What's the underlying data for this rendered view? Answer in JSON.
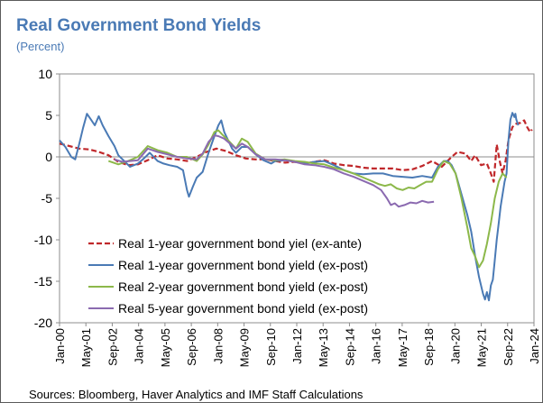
{
  "chart_data": {
    "type": "line",
    "title": "Real Government Bond Yields",
    "subtitle": "(Percent)",
    "source": "Sources: Bloomberg, Haver Analytics and IMF Staff Calculations",
    "ylim": [
      -20,
      10
    ],
    "y_ticks": [
      "10",
      "5",
      "0",
      "-5",
      "-10",
      "-15",
      "-20"
    ],
    "x_tick_labels": [
      "Jan-00",
      "May-01",
      "Sep-02",
      "Jan-04",
      "May-05",
      "Sep-06",
      "Jan-08",
      "May-09",
      "Sep-10",
      "Jan-12",
      "May-13",
      "Sep-14",
      "Jan-16",
      "May-17",
      "Sep-18",
      "Jan-20",
      "May-21",
      "Sep-22",
      "Jan-24"
    ],
    "x_range": [
      2000.0,
      2024.2
    ],
    "legend_position": "lower-left",
    "series": [
      {
        "name": "Real 1-year government bond yiel (ex-ante)",
        "color": "#c0282b",
        "dash": "dashed",
        "points": [
          [
            2000.0,
            1.6
          ],
          [
            2000.5,
            1.3
          ],
          [
            2001.0,
            1.0
          ],
          [
            2001.5,
            0.9
          ],
          [
            2002.0,
            0.6
          ],
          [
            2002.5,
            0.2
          ],
          [
            2003.0,
            -0.6
          ],
          [
            2003.5,
            -1.0
          ],
          [
            2004.0,
            -0.9
          ],
          [
            2004.5,
            -0.4
          ],
          [
            2005.0,
            0.2
          ],
          [
            2005.5,
            -0.2
          ],
          [
            2006.0,
            -0.3
          ],
          [
            2006.5,
            -0.5
          ],
          [
            2007.0,
            0.0
          ],
          [
            2007.5,
            0.6
          ],
          [
            2008.0,
            1.0
          ],
          [
            2008.5,
            0.7
          ],
          [
            2009.0,
            0.2
          ],
          [
            2009.5,
            -0.2
          ],
          [
            2010.0,
            -0.3
          ],
          [
            2010.5,
            -0.3
          ],
          [
            2011.0,
            -0.5
          ],
          [
            2011.5,
            -0.7
          ],
          [
            2012.0,
            -0.6
          ],
          [
            2012.5,
            -0.8
          ],
          [
            2013.0,
            -0.6
          ],
          [
            2013.5,
            -0.4
          ],
          [
            2014.0,
            -0.8
          ],
          [
            2014.5,
            -1.0
          ],
          [
            2015.0,
            -1.1
          ],
          [
            2015.5,
            -1.3
          ],
          [
            2016.0,
            -1.4
          ],
          [
            2016.5,
            -1.4
          ],
          [
            2017.0,
            -1.4
          ],
          [
            2017.5,
            -1.6
          ],
          [
            2018.0,
            -1.5
          ],
          [
            2018.5,
            -1.1
          ],
          [
            2019.0,
            -0.5
          ],
          [
            2019.5,
            -1.2
          ],
          [
            2020.0,
            0.0
          ],
          [
            2020.3,
            0.6
          ],
          [
            2020.7,
            0.4
          ],
          [
            2021.0,
            -0.5
          ],
          [
            2021.2,
            0.2
          ],
          [
            2021.5,
            -1.0
          ],
          [
            2021.8,
            -0.8
          ],
          [
            2022.0,
            -2.0
          ],
          [
            2022.15,
            -3.0
          ],
          [
            2022.3,
            1.5
          ],
          [
            2022.45,
            -0.5
          ],
          [
            2022.6,
            -2.0
          ],
          [
            2022.75,
            -0.5
          ],
          [
            2022.9,
            2.0
          ],
          [
            2023.1,
            3.6
          ],
          [
            2023.3,
            4.0
          ],
          [
            2023.5,
            4.1
          ],
          [
            2023.7,
            4.4
          ],
          [
            2023.85,
            3.6
          ],
          [
            2024.0,
            3.0
          ],
          [
            2024.1,
            3.3
          ]
        ]
      },
      {
        "name": "Real 1-year government bond yield (ex-post)",
        "color": "#4a7ab5",
        "dash": "solid",
        "points": [
          [
            2000.0,
            2.0
          ],
          [
            2000.3,
            1.2
          ],
          [
            2000.6,
            0.0
          ],
          [
            2000.8,
            -0.3
          ],
          [
            2001.0,
            1.5
          ],
          [
            2001.2,
            3.5
          ],
          [
            2001.4,
            5.2
          ],
          [
            2001.6,
            4.5
          ],
          [
            2001.8,
            3.8
          ],
          [
            2002.0,
            4.9
          ],
          [
            2002.2,
            3.8
          ],
          [
            2002.5,
            2.5
          ],
          [
            2002.8,
            1.3
          ],
          [
            2003.0,
            0.2
          ],
          [
            2003.3,
            -0.5
          ],
          [
            2003.6,
            -1.2
          ],
          [
            2004.0,
            -0.8
          ],
          [
            2004.3,
            -0.2
          ],
          [
            2004.6,
            0.5
          ],
          [
            2005.0,
            -0.5
          ],
          [
            2005.3,
            -0.8
          ],
          [
            2005.6,
            -1.0
          ],
          [
            2006.0,
            -1.2
          ],
          [
            2006.3,
            -1.6
          ],
          [
            2006.5,
            -4.0
          ],
          [
            2006.6,
            -4.8
          ],
          [
            2006.8,
            -3.6
          ],
          [
            2007.0,
            -2.5
          ],
          [
            2007.3,
            -1.8
          ],
          [
            2007.6,
            0.5
          ],
          [
            2007.9,
            2.5
          ],
          [
            2008.1,
            3.8
          ],
          [
            2008.25,
            4.4
          ],
          [
            2008.4,
            3.0
          ],
          [
            2008.6,
            2.0
          ],
          [
            2008.8,
            1.0
          ],
          [
            2009.0,
            0.5
          ],
          [
            2009.3,
            1.2
          ],
          [
            2009.6,
            1.2
          ],
          [
            2010.0,
            0.3
          ],
          [
            2010.4,
            -0.4
          ],
          [
            2010.8,
            -0.8
          ],
          [
            2011.0,
            -0.5
          ],
          [
            2011.5,
            -0.4
          ],
          [
            2012.0,
            -0.6
          ],
          [
            2012.5,
            -0.8
          ],
          [
            2013.0,
            -0.6
          ],
          [
            2013.5,
            -0.5
          ],
          [
            2014.0,
            -1.0
          ],
          [
            2014.5,
            -1.6
          ],
          [
            2015.0,
            -2.0
          ],
          [
            2015.5,
            -2.1
          ],
          [
            2016.0,
            -2.0
          ],
          [
            2016.5,
            -2.0
          ],
          [
            2017.0,
            -2.3
          ],
          [
            2017.5,
            -2.4
          ],
          [
            2018.0,
            -2.5
          ],
          [
            2018.5,
            -2.3
          ],
          [
            2019.0,
            -2.5
          ],
          [
            2019.3,
            -1.2
          ],
          [
            2019.6,
            -0.5
          ],
          [
            2019.8,
            -0.5
          ],
          [
            2020.0,
            -1.0
          ],
          [
            2020.2,
            -2.0
          ],
          [
            2020.5,
            -4.5
          ],
          [
            2020.8,
            -7.0
          ],
          [
            2021.0,
            -9.0
          ],
          [
            2021.2,
            -12.0
          ],
          [
            2021.4,
            -14.5
          ],
          [
            2021.6,
            -16.5
          ],
          [
            2021.7,
            -17.2
          ],
          [
            2021.8,
            -16.3
          ],
          [
            2021.9,
            -17.3
          ],
          [
            2022.0,
            -15.5
          ],
          [
            2022.1,
            -14.8
          ],
          [
            2022.2,
            -12.5
          ],
          [
            2022.3,
            -10.0
          ],
          [
            2022.4,
            -8.0
          ],
          [
            2022.5,
            -6.0
          ],
          [
            2022.6,
            -4.5
          ],
          [
            2022.7,
            -3.0
          ],
          [
            2022.8,
            -2.0
          ],
          [
            2022.9,
            2.0
          ],
          [
            2023.0,
            4.5
          ],
          [
            2023.1,
            5.3
          ],
          [
            2023.2,
            4.8
          ],
          [
            2023.25,
            5.2
          ],
          [
            2023.3,
            4.5
          ],
          [
            2023.4,
            3.8
          ]
        ]
      },
      {
        "name": "Real 2-year government bond yield (ex-post)",
        "color": "#8cb84a",
        "dash": "solid",
        "points": [
          [
            2002.5,
            -0.5
          ],
          [
            2003.0,
            -0.9
          ],
          [
            2003.5,
            -0.5
          ],
          [
            2004.0,
            0.0
          ],
          [
            2004.5,
            1.3
          ],
          [
            2005.0,
            0.8
          ],
          [
            2005.5,
            0.5
          ],
          [
            2006.0,
            0.0
          ],
          [
            2006.5,
            0.0
          ],
          [
            2007.0,
            -0.5
          ],
          [
            2007.3,
            0.3
          ],
          [
            2007.6,
            1.5
          ],
          [
            2007.9,
            3.0
          ],
          [
            2008.1,
            3.2
          ],
          [
            2008.3,
            2.7
          ],
          [
            2008.6,
            2.0
          ],
          [
            2009.0,
            1.0
          ],
          [
            2009.3,
            2.2
          ],
          [
            2009.6,
            1.8
          ],
          [
            2010.0,
            0.4
          ],
          [
            2010.5,
            -0.3
          ],
          [
            2011.0,
            -0.4
          ],
          [
            2011.5,
            -0.3
          ],
          [
            2012.0,
            -0.5
          ],
          [
            2012.5,
            -0.6
          ],
          [
            2013.0,
            -0.8
          ],
          [
            2013.5,
            -0.9
          ],
          [
            2014.0,
            -1.3
          ],
          [
            2014.5,
            -1.6
          ],
          [
            2015.0,
            -2.0
          ],
          [
            2015.5,
            -2.5
          ],
          [
            2016.0,
            -3.0
          ],
          [
            2016.3,
            -3.3
          ],
          [
            2016.6,
            -3.5
          ],
          [
            2016.9,
            -3.3
          ],
          [
            2017.2,
            -3.8
          ],
          [
            2017.5,
            -4.0
          ],
          [
            2017.8,
            -3.7
          ],
          [
            2018.1,
            -3.8
          ],
          [
            2018.4,
            -3.4
          ],
          [
            2018.7,
            -3.0
          ],
          [
            2019.0,
            -3.0
          ],
          [
            2019.3,
            -1.5
          ],
          [
            2019.6,
            -0.5
          ],
          [
            2019.9,
            -0.8
          ],
          [
            2020.2,
            -2.0
          ],
          [
            2020.5,
            -5.0
          ],
          [
            2020.8,
            -8.5
          ],
          [
            2021.0,
            -11.0
          ],
          [
            2021.2,
            -12.0
          ],
          [
            2021.4,
            -13.3
          ],
          [
            2021.6,
            -12.5
          ],
          [
            2021.8,
            -10.5
          ],
          [
            2022.0,
            -8.0
          ],
          [
            2022.2,
            -5.0
          ],
          [
            2022.4,
            -3.0
          ],
          [
            2022.6,
            -2.0
          ],
          [
            2022.8,
            -2.5
          ]
        ]
      },
      {
        "name": "Real 5-year government bond yield (ex-post)",
        "color": "#8b6ab0",
        "dash": "solid",
        "points": [
          [
            2002.8,
            -0.3
          ],
          [
            2003.2,
            -0.6
          ],
          [
            2003.6,
            -0.5
          ],
          [
            2004.0,
            -0.4
          ],
          [
            2004.5,
            1.0
          ],
          [
            2005.0,
            0.6
          ],
          [
            2005.5,
            0.3
          ],
          [
            2006.0,
            0.0
          ],
          [
            2006.5,
            -0.2
          ],
          [
            2007.0,
            -0.3
          ],
          [
            2007.3,
            0.4
          ],
          [
            2007.6,
            1.8
          ],
          [
            2007.9,
            2.6
          ],
          [
            2008.1,
            2.5
          ],
          [
            2008.4,
            2.2
          ],
          [
            2008.7,
            1.6
          ],
          [
            2009.0,
            1.0
          ],
          [
            2009.3,
            1.6
          ],
          [
            2009.6,
            1.2
          ],
          [
            2010.0,
            0.3
          ],
          [
            2010.5,
            -0.3
          ],
          [
            2011.0,
            -0.3
          ],
          [
            2011.5,
            -0.4
          ],
          [
            2012.0,
            -0.6
          ],
          [
            2012.5,
            -0.9
          ],
          [
            2013.0,
            -1.0
          ],
          [
            2013.5,
            -1.2
          ],
          [
            2014.0,
            -1.5
          ],
          [
            2014.5,
            -2.0
          ],
          [
            2015.0,
            -2.4
          ],
          [
            2015.5,
            -2.9
          ],
          [
            2016.0,
            -3.4
          ],
          [
            2016.4,
            -4.0
          ],
          [
            2016.7,
            -5.0
          ],
          [
            2016.9,
            -5.8
          ],
          [
            2017.1,
            -5.6
          ],
          [
            2017.3,
            -6.0
          ],
          [
            2017.6,
            -5.8
          ],
          [
            2017.9,
            -5.5
          ],
          [
            2018.2,
            -5.6
          ],
          [
            2018.5,
            -5.3
          ],
          [
            2018.8,
            -5.5
          ],
          [
            2019.1,
            -5.4
          ]
        ]
      }
    ]
  }
}
